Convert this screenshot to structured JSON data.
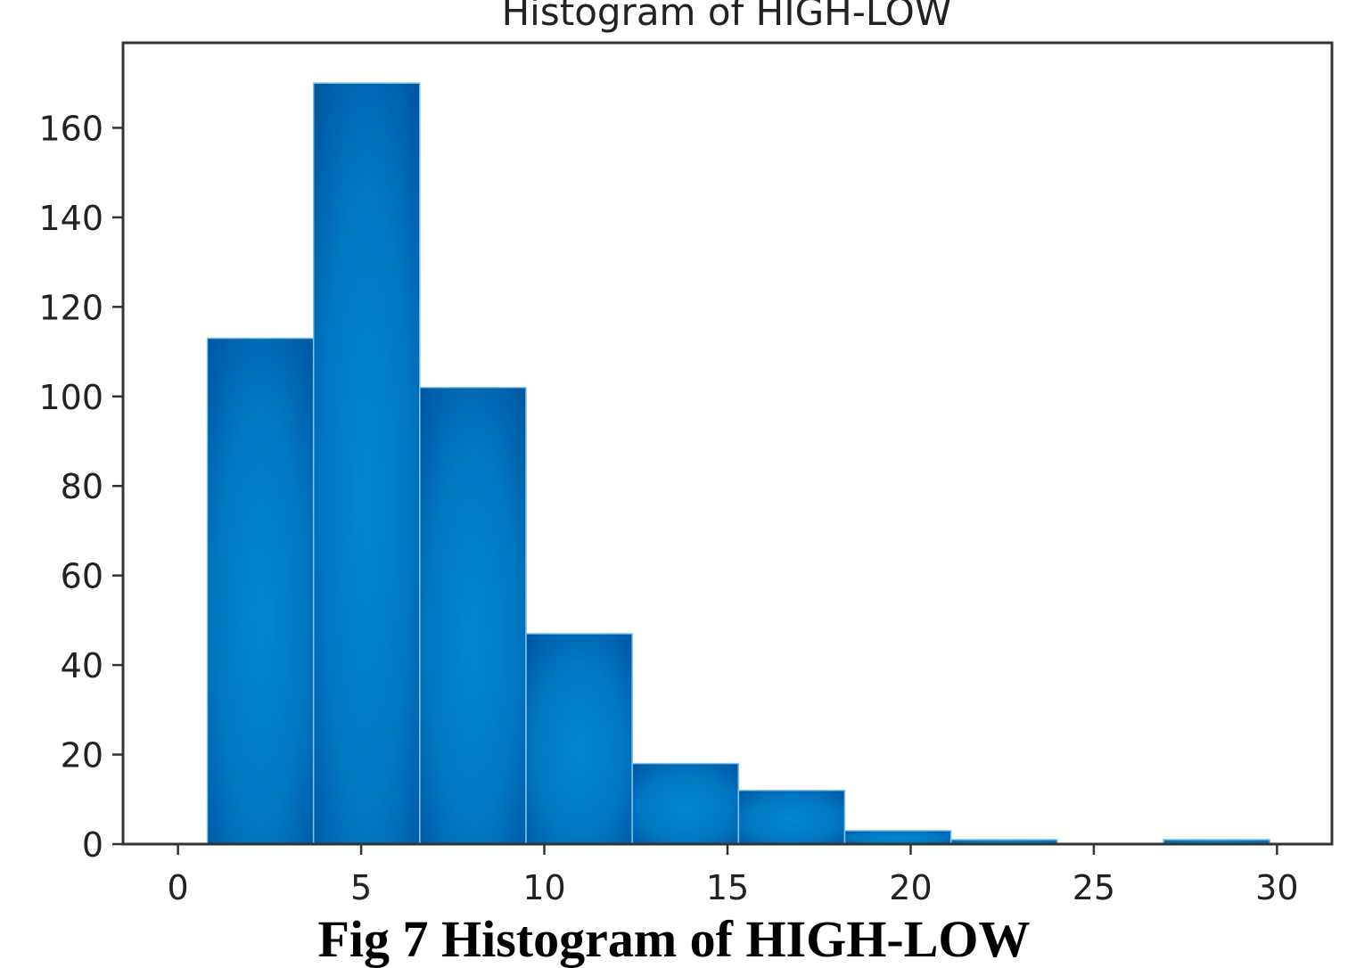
{
  "caption": "Fig 7 Histogram of HIGH-LOW",
  "chart_data": {
    "type": "bar",
    "subtype": "histogram",
    "title": "Histogram of HIGH-LOW",
    "xlabel": "",
    "ylabel": "",
    "bin_edges": [
      0.8,
      3.7,
      6.6,
      9.5,
      12.4,
      15.3,
      18.2,
      21.1,
      24.0,
      26.9,
      29.8
    ],
    "values": [
      113,
      170,
      102,
      47,
      18,
      12,
      3,
      1,
      0,
      1
    ],
    "xlim": [
      -1.5,
      31.5
    ],
    "ylim": [
      0,
      179
    ],
    "xticks": [
      0,
      5,
      10,
      15,
      20,
      25,
      30
    ],
    "yticks": [
      0,
      20,
      40,
      60,
      80,
      100,
      120,
      140,
      160
    ],
    "grid": false,
    "legend": "none",
    "colors": {
      "bar_edge": "#00539f",
      "bar_center": "#0086cc",
      "axes": "#333333"
    }
  }
}
